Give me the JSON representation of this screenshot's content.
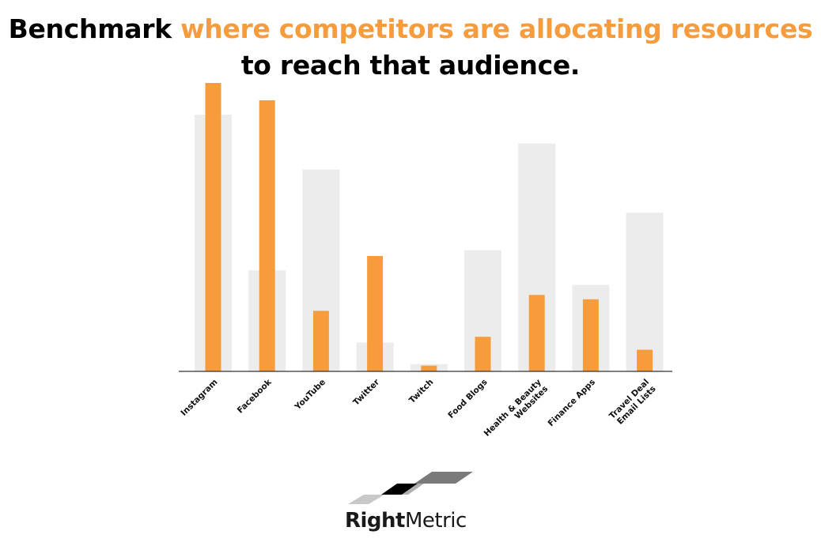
{
  "headline": {
    "part1": "Benchmark ",
    "part2": "where competitors are allocating resources",
    "part3": "to reach that audience."
  },
  "colors": {
    "accent": "#f79c3d",
    "background_bar": "#ececec",
    "axis": "#333333"
  },
  "chart_data": {
    "type": "bar",
    "title": "",
    "xlabel": "",
    "ylabel": "",
    "ylim": [
      0,
      100
    ],
    "categories": [
      "Instagram",
      "Facebook",
      "YouTube",
      "Twitter",
      "Twitch",
      "Food Blogs",
      "Health & Beauty Websites",
      "Finance Apps",
      "Travel Deal Email Lists"
    ],
    "category_lines": [
      [
        "Instagram"
      ],
      [
        "Facebook"
      ],
      [
        "YouTube"
      ],
      [
        "Twitter"
      ],
      [
        "Twitch"
      ],
      [
        "Food Blogs"
      ],
      [
        "Health & Beauty",
        "Websites"
      ],
      [
        "Finance Apps"
      ],
      [
        "Travel Deal",
        "Email Lists"
      ]
    ],
    "series": [
      {
        "values": [
          89,
          35,
          70,
          10,
          2.5,
          42,
          79,
          30,
          55
        ]
      },
      {
        "values": [
          100,
          94,
          21,
          40,
          2,
          12,
          26.5,
          25,
          7.5
        ]
      }
    ],
    "grid": false,
    "legend": "none"
  },
  "logo": {
    "brand_bold": "Right",
    "brand_regular": "Metric"
  }
}
